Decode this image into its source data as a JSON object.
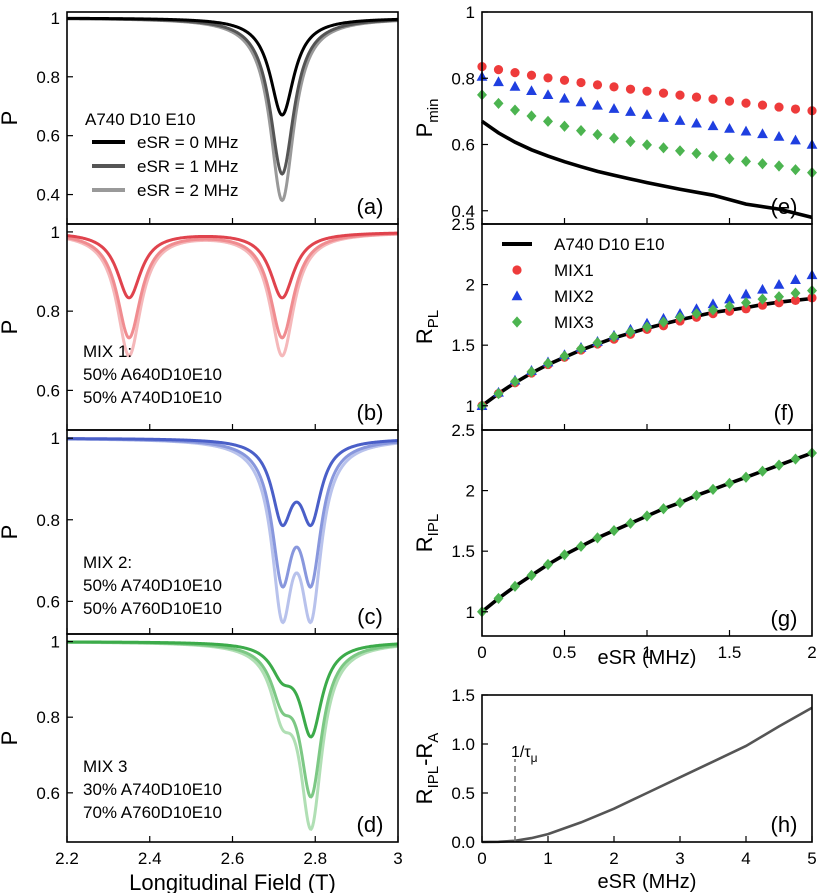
{
  "figure": {
    "left_xlabel": "Longitudinal Field (T)",
    "right_xlabel": "eSR (MHz)"
  },
  "chart_data": [
    {
      "id": "a",
      "type": "line",
      "panel_label": "(a)",
      "ylabel": "P",
      "xlim": [
        2.2,
        3.0
      ],
      "ylim": [
        0.3,
        1.02
      ],
      "yticks": [
        0.4,
        0.6,
        0.8,
        1
      ],
      "annotation_lines": [
        "A740 D10 E10"
      ],
      "legend_placement": "left",
      "series": [
        {
          "name": "eSR = 0 MHz",
          "color": "#000000",
          "dips": [
            {
              "center": 2.72,
              "width": 0.035,
              "depth": 0.33
            }
          ]
        },
        {
          "name": "eSR = 1 MHz",
          "color": "#555555",
          "dips": [
            {
              "center": 2.72,
              "width": 0.035,
              "depth": 0.53
            }
          ]
        },
        {
          "name": "eSR = 2 MHz",
          "color": "#999999",
          "dips": [
            {
              "center": 2.72,
              "width": 0.035,
              "depth": 0.62
            }
          ]
        }
      ]
    },
    {
      "id": "b",
      "type": "line",
      "panel_label": "(b)",
      "ylabel": "P",
      "xlim": [
        2.2,
        3.0
      ],
      "ylim": [
        0.5,
        1.02
      ],
      "yticks": [
        0.6,
        0.8,
        1
      ],
      "annotation_lines": [
        "MIX 1:",
        "50% A640D10E10",
        "50% A740D10E10"
      ],
      "series": [
        {
          "color": "#e0434d",
          "dips": [
            {
              "center": 2.35,
              "width": 0.035,
              "depth": 0.165
            },
            {
              "center": 2.72,
              "width": 0.035,
              "depth": 0.165
            }
          ]
        },
        {
          "color": "#f08c90",
          "dips": [
            {
              "center": 2.35,
              "width": 0.035,
              "depth": 0.265
            },
            {
              "center": 2.72,
              "width": 0.035,
              "depth": 0.265
            }
          ]
        },
        {
          "color": "#f5b8ba",
          "dips": [
            {
              "center": 2.35,
              "width": 0.035,
              "depth": 0.31
            },
            {
              "center": 2.72,
              "width": 0.035,
              "depth": 0.31
            }
          ]
        }
      ]
    },
    {
      "id": "c",
      "type": "line",
      "panel_label": "(c)",
      "ylabel": "P",
      "xlim": [
        2.2,
        3.0
      ],
      "ylim": [
        0.52,
        1.02
      ],
      "yticks": [
        0.6,
        0.8,
        1
      ],
      "annotation_lines": [
        "MIX 2:",
        "50% A740D10E10",
        "50% A760D10E10"
      ],
      "series": [
        {
          "color": "#4a5fc8",
          "dips": [
            {
              "center": 2.72,
              "width": 0.03,
              "depth": 0.185
            },
            {
              "center": 2.79,
              "width": 0.03,
              "depth": 0.185
            }
          ]
        },
        {
          "color": "#8897dd",
          "dips": [
            {
              "center": 2.72,
              "width": 0.03,
              "depth": 0.315
            },
            {
              "center": 2.79,
              "width": 0.03,
              "depth": 0.315
            }
          ]
        },
        {
          "color": "#b8c2ec",
          "dips": [
            {
              "center": 2.72,
              "width": 0.03,
              "depth": 0.39
            },
            {
              "center": 2.79,
              "width": 0.03,
              "depth": 0.39
            }
          ]
        }
      ]
    },
    {
      "id": "d",
      "type": "line",
      "panel_label": "(d)",
      "ylabel": "P",
      "xlim": [
        2.2,
        3.0
      ],
      "ylim": [
        0.47,
        1.02
      ],
      "yticks": [
        0.6,
        0.8,
        1
      ],
      "annotation_lines": [
        "MIX 3",
        "30% A740D10E10",
        "70% A760D10E10"
      ],
      "series": [
        {
          "color": "#3cab4a",
          "dips": [
            {
              "center": 2.72,
              "width": 0.032,
              "depth": 0.07
            },
            {
              "center": 2.79,
              "width": 0.032,
              "depth": 0.24
            }
          ]
        },
        {
          "color": "#7cc884",
          "dips": [
            {
              "center": 2.72,
              "width": 0.032,
              "depth": 0.12
            },
            {
              "center": 2.79,
              "width": 0.032,
              "depth": 0.39
            }
          ]
        },
        {
          "color": "#b0dfb4",
          "dips": [
            {
              "center": 2.72,
              "width": 0.032,
              "depth": 0.15
            },
            {
              "center": 2.79,
              "width": 0.032,
              "depth": 0.47
            }
          ]
        }
      ]
    },
    {
      "id": "e",
      "type": "line",
      "panel_label": "(e)",
      "ylabel": "P",
      "ylabel_sub": "min",
      "xlim": [
        0,
        2
      ],
      "ylim": [
        0.36,
        1.0
      ],
      "yticks": [
        0.4,
        0.6,
        0.8,
        1
      ],
      "x": [
        0.0,
        0.1,
        0.2,
        0.3,
        0.4,
        0.5,
        0.6,
        0.7,
        0.8,
        0.9,
        1.0,
        1.1,
        1.2,
        1.3,
        1.4,
        1.5,
        1.6,
        1.7,
        1.8,
        1.9,
        2.0
      ],
      "series": [
        {
          "name": "A740 D10 E10",
          "kind": "line",
          "color": "#000000",
          "x": [
            0.0,
            0.1,
            0.2,
            0.3,
            0.4,
            0.5,
            0.6,
            0.7,
            0.8,
            0.9,
            1.0,
            1.2,
            1.4,
            1.6,
            1.8,
            2.0
          ],
          "values": [
            0.67,
            0.635,
            0.607,
            0.584,
            0.565,
            0.548,
            0.533,
            0.519,
            0.507,
            0.496,
            0.485,
            0.465,
            0.447,
            0.42,
            0.405,
            0.38
          ]
        },
        {
          "name": "MIX1",
          "kind": "circle",
          "color": "#ee3b3b",
          "values": [
            0.835,
            0.826,
            0.817,
            0.809,
            0.801,
            0.794,
            0.787,
            0.78,
            0.774,
            0.767,
            0.761,
            0.755,
            0.749,
            0.743,
            0.737,
            0.731,
            0.725,
            0.719,
            0.713,
            0.707,
            0.702
          ]
        },
        {
          "name": "MIX2",
          "kind": "triangle",
          "color": "#1f3fe0",
          "values": [
            0.805,
            0.789,
            0.775,
            0.762,
            0.75,
            0.739,
            0.728,
            0.718,
            0.708,
            0.699,
            0.69,
            0.681,
            0.672,
            0.664,
            0.656,
            0.648,
            0.64,
            0.632,
            0.624,
            0.613,
            0.6
          ]
        },
        {
          "name": "MIX3",
          "kind": "diamond",
          "color": "#4cb450",
          "values": [
            0.75,
            0.724,
            0.704,
            0.686,
            0.67,
            0.655,
            0.642,
            0.63,
            0.619,
            0.609,
            0.599,
            0.59,
            0.581,
            0.573,
            0.565,
            0.557,
            0.549,
            0.542,
            0.535,
            0.524,
            0.515
          ]
        }
      ]
    },
    {
      "id": "f",
      "type": "line",
      "panel_label": "(f)",
      "ylabel": "R",
      "ylabel_sub": "PL",
      "xlim": [
        0,
        2
      ],
      "ylim": [
        0.8,
        2.5
      ],
      "yticks": [
        1,
        1.5,
        2,
        2.5
      ],
      "x": [
        0.0,
        0.1,
        0.2,
        0.3,
        0.4,
        0.5,
        0.6,
        0.7,
        0.8,
        0.9,
        1.0,
        1.1,
        1.2,
        1.3,
        1.4,
        1.5,
        1.6,
        1.7,
        1.8,
        1.9,
        2.0
      ],
      "legend_placement": "top-left",
      "series": [
        {
          "name": "A740 D10 E10",
          "kind": "line",
          "color": "#000000",
          "values": [
            1.0,
            1.1,
            1.19,
            1.27,
            1.34,
            1.4,
            1.46,
            1.51,
            1.56,
            1.6,
            1.64,
            1.675,
            1.71,
            1.74,
            1.77,
            1.79,
            1.81,
            1.835,
            1.855,
            1.87,
            1.885
          ]
        },
        {
          "name": "MIX1",
          "kind": "circle",
          "color": "#ee3b3b",
          "values": [
            1.0,
            1.1,
            1.19,
            1.27,
            1.34,
            1.4,
            1.46,
            1.51,
            1.55,
            1.59,
            1.63,
            1.66,
            1.7,
            1.73,
            1.76,
            1.78,
            1.8,
            1.83,
            1.85,
            1.87,
            1.89
          ]
        },
        {
          "name": "MIX2",
          "kind": "triangle",
          "color": "#1f3fe0",
          "values": [
            1.0,
            1.11,
            1.21,
            1.29,
            1.36,
            1.42,
            1.48,
            1.53,
            1.58,
            1.63,
            1.68,
            1.72,
            1.76,
            1.8,
            1.84,
            1.88,
            1.92,
            1.96,
            2.0,
            2.04,
            2.08
          ]
        },
        {
          "name": "MIX3",
          "kind": "diamond",
          "color": "#4cb450",
          "values": [
            1.0,
            1.1,
            1.2,
            1.28,
            1.35,
            1.41,
            1.47,
            1.52,
            1.57,
            1.61,
            1.65,
            1.69,
            1.73,
            1.76,
            1.79,
            1.82,
            1.85,
            1.88,
            1.9,
            1.93,
            1.95
          ]
        }
      ]
    },
    {
      "id": "g",
      "type": "line",
      "panel_label": "(g)",
      "ylabel": "R",
      "ylabel_sub": "IPL",
      "xlim": [
        0,
        2
      ],
      "ylim": [
        0.8,
        2.5
      ],
      "yticks": [
        1,
        1.5,
        2,
        2.5
      ],
      "xticks": [
        0,
        0.5,
        1,
        1.5,
        2
      ],
      "xlabel": "eSR (MHz)",
      "x": [
        0.0,
        0.1,
        0.2,
        0.3,
        0.4,
        0.5,
        0.6,
        0.7,
        0.8,
        0.9,
        1.0,
        1.1,
        1.2,
        1.3,
        1.4,
        1.5,
        1.6,
        1.7,
        1.8,
        1.9,
        2.0
      ],
      "series": [
        {
          "kind": "line",
          "color": "#000000",
          "values": [
            1.0,
            1.11,
            1.21,
            1.3,
            1.39,
            1.47,
            1.54,
            1.61,
            1.67,
            1.73,
            1.79,
            1.85,
            1.9,
            1.96,
            2.01,
            2.06,
            2.11,
            2.16,
            2.21,
            2.26,
            2.31
          ]
        },
        {
          "kind": "diamond",
          "color": "#4cb450",
          "values": [
            1.0,
            1.11,
            1.21,
            1.3,
            1.39,
            1.47,
            1.54,
            1.61,
            1.67,
            1.73,
            1.79,
            1.85,
            1.9,
            1.96,
            2.01,
            2.06,
            2.11,
            2.16,
            2.21,
            2.26,
            2.31
          ]
        }
      ]
    },
    {
      "id": "h",
      "type": "line",
      "panel_label": "(h)",
      "ylabel": "R",
      "ylabel_sub": "IPL",
      "ylabel_tail": "-R",
      "ylabel_tail_sub": "A",
      "xlim": [
        0,
        5
      ],
      "ylim": [
        0,
        1.5
      ],
      "yticks": [
        0.0,
        0.5,
        1.0,
        1.5
      ],
      "xticks": [
        0,
        1,
        2,
        3,
        4,
        5
      ],
      "xlabel": "eSR (MHz)",
      "marker_label": "1/τ",
      "marker_label_sub": "μ",
      "marker_x": 0.5,
      "series": [
        {
          "kind": "line",
          "color": "#555555",
          "x": [
            0,
            0.25,
            0.5,
            0.75,
            1.0,
            1.25,
            1.5,
            1.75,
            2.0,
            2.5,
            3.0,
            3.5,
            4.0,
            4.5,
            5.0
          ],
          "values": [
            0,
            0.002,
            0.012,
            0.04,
            0.08,
            0.14,
            0.2,
            0.27,
            0.34,
            0.5,
            0.66,
            0.82,
            0.98,
            1.18,
            1.37
          ]
        }
      ]
    }
  ]
}
